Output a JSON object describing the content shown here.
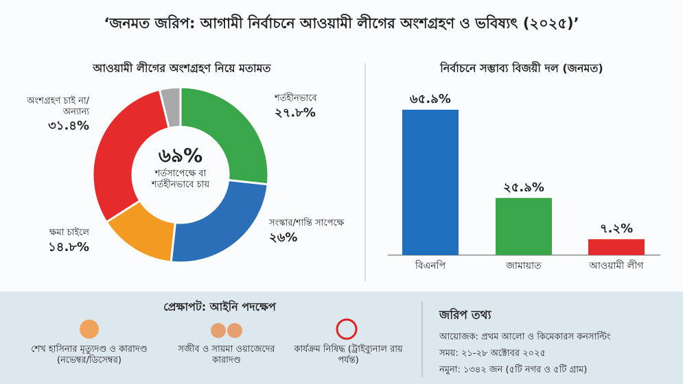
{
  "title": "‘জনমত জরিপ: আগামী নির্বাচনে আওয়ামী লীগের অংশগ্রহণ ও ভবিষ্যৎ (২০২৫)’",
  "chart_data": [
    {
      "type": "donut",
      "title": "আওয়ামী লীগের অংশগ্রহণ নিয়ে মতামত",
      "center_value": "৬৯%",
      "center_text": "শর্তসাপেক্ষে বা শর্তহীনভাবে চায়",
      "categories": [
        "শর্তহীনভাবে",
        "সংস্কার/শান্তি সাপেক্ষে",
        "ক্ষমা চাইলে",
        "অংশগ্রহণ চাই না/অন্যান্য",
        null
      ],
      "values": [
        27.8,
        26,
        14.8,
        31.4,
        4
      ],
      "value_labels": [
        "২৭.৮%",
        "২৬%",
        "১৪.৮%",
        "৩১.৪%",
        null
      ],
      "colors": [
        "#3aa64a",
        "#2a6fb8",
        "#f39a23",
        "#e52b2b",
        "#a9a9a9"
      ]
    },
    {
      "type": "bar",
      "title": "নির্বাচনে সম্ভাব্য বিজয়ী দল (জনমত)",
      "categories": [
        "বিএনপি",
        "জামায়াত",
        "আওয়ামী লীগ"
      ],
      "values": [
        65.9,
        25.9,
        7.2
      ],
      "value_labels": [
        "৬৫.৯%",
        "২৫.৯%",
        "৭.২%"
      ],
      "colors": [
        "#1f6fbf",
        "#3aa64a",
        "#e52b2b"
      ]
    }
  ],
  "background": {
    "title": "প্রেক্ষাপট: আইনি পদক্ষেপ",
    "items": [
      "শেখ হাসিনার মৃত্যুদণ্ড ও কারাদণ্ড (নভেম্বর/ডিসেম্বর)",
      "সজীব ও সায়মা ওয়াজেদের কারাদণ্ড",
      "কার্যক্রম নিষিদ্ধ (ট্রাইব্যুনাল রায় পর্যন্ত)"
    ]
  },
  "survey_info": {
    "title": "জরিপ তথ্য",
    "lines": [
      "আয়োজক: প্রথম আলো ও কিমেকারস কনসাল্টিং",
      "সময়: ২১-২৮ অক্টোবর ২০২৫",
      "নমুনা: ১৩৪২ জন (৫টি নগর ও ৫টি গ্রাম)"
    ]
  }
}
